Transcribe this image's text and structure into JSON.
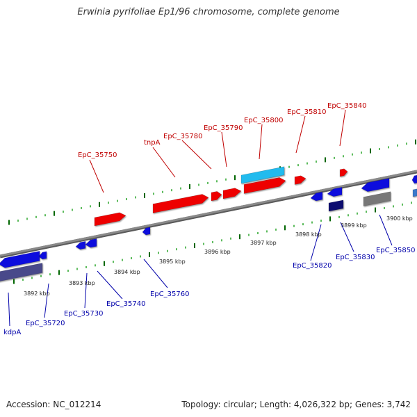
{
  "title": "Erwinia pyrifoliae Ep1/96 chromosome, complete genome",
  "footer": {
    "accession": "Accession: NC_012214",
    "topology": "Topology: circular; Length: 4,026,322 bp; Genes: 3,742"
  },
  "colors": {
    "forward_gene": "#ee0000",
    "reverse_gene": "#1010dd",
    "forward_label": "#c00000",
    "reverse_label": "#0000aa",
    "tick_major": "#006600",
    "tick_minor": "#33aa33",
    "backbone": "#8a8a8a",
    "highlight_cyan": "#22bbee",
    "dark_navy": "#0a0a70",
    "slate": "#4a4a8a",
    "gray_gene": "#777777"
  },
  "kbp_labels": [
    "3892 kbp",
    "3893 kbp",
    "3894 kbp",
    "3895 kbp",
    "3896 kbp",
    "3897 kbp",
    "3898 kbp",
    "3899 kbp",
    "3900 kbp"
  ],
  "forward_labels": [
    "EpC_35750",
    "tnpA",
    "EpC_35780",
    "EpC_35790",
    "EpC_35800",
    "EpC_35810",
    "EpC_35840"
  ],
  "reverse_labels": [
    "kdpA",
    "EpC_35720",
    "EpC_35730",
    "EpC_35740",
    "EpC_35760",
    "EpC_35820",
    "EpC_35830",
    "EpC_35850"
  ]
}
